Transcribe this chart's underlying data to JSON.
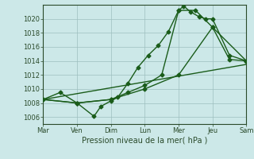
{
  "title": "",
  "xlabel": "Pression niveau de la mer( hPa )",
  "ylabel": "",
  "background_color": "#cce8e8",
  "grid_color": "#9dbfbf",
  "line_color": "#1a5c1a",
  "xlim": [
    0,
    6
  ],
  "ylim": [
    1005.0,
    1022.0
  ],
  "yticks": [
    1006,
    1008,
    1010,
    1012,
    1014,
    1016,
    1018,
    1020
  ],
  "xtick_labels": [
    "Mar",
    "Ven",
    "Dim",
    "Lun",
    "Mer",
    "Jeu",
    "Sam"
  ],
  "xtick_positions": [
    0,
    1,
    2,
    3,
    4,
    5,
    6
  ],
  "line1_x": [
    0,
    0.5,
    1.0,
    1.5,
    1.7,
    2.0,
    2.2,
    2.5,
    2.8,
    3.1,
    3.4,
    3.7,
    4.0,
    4.15,
    4.35,
    4.6,
    4.8,
    5.0,
    5.5,
    6.0
  ],
  "line1_y": [
    1008.5,
    1009.5,
    1008.0,
    1006.1,
    1007.5,
    1008.3,
    1008.8,
    1010.8,
    1013.1,
    1014.8,
    1016.2,
    1018.2,
    1021.2,
    1021.8,
    1021.0,
    1020.3,
    1020.0,
    1020.0,
    1014.8,
    1014.0
  ],
  "line2_x": [
    0,
    1,
    2,
    2.5,
    3.0,
    3.5,
    4.0,
    4.5,
    5.0,
    5.5,
    6.0
  ],
  "line2_y": [
    1008.5,
    1008.0,
    1008.5,
    1009.5,
    1010.5,
    1012.0,
    1021.2,
    1021.2,
    1018.8,
    1014.2,
    1014.0
  ],
  "line3_x": [
    0,
    1,
    2,
    3,
    4,
    5,
    6
  ],
  "line3_y": [
    1008.5,
    1008.0,
    1008.5,
    1010.0,
    1012.0,
    1018.8,
    1014.0
  ],
  "line4_x": [
    0,
    6
  ],
  "line4_y": [
    1008.5,
    1013.5
  ],
  "marker": "D",
  "markersize": 2.5,
  "linewidth": 1.0
}
